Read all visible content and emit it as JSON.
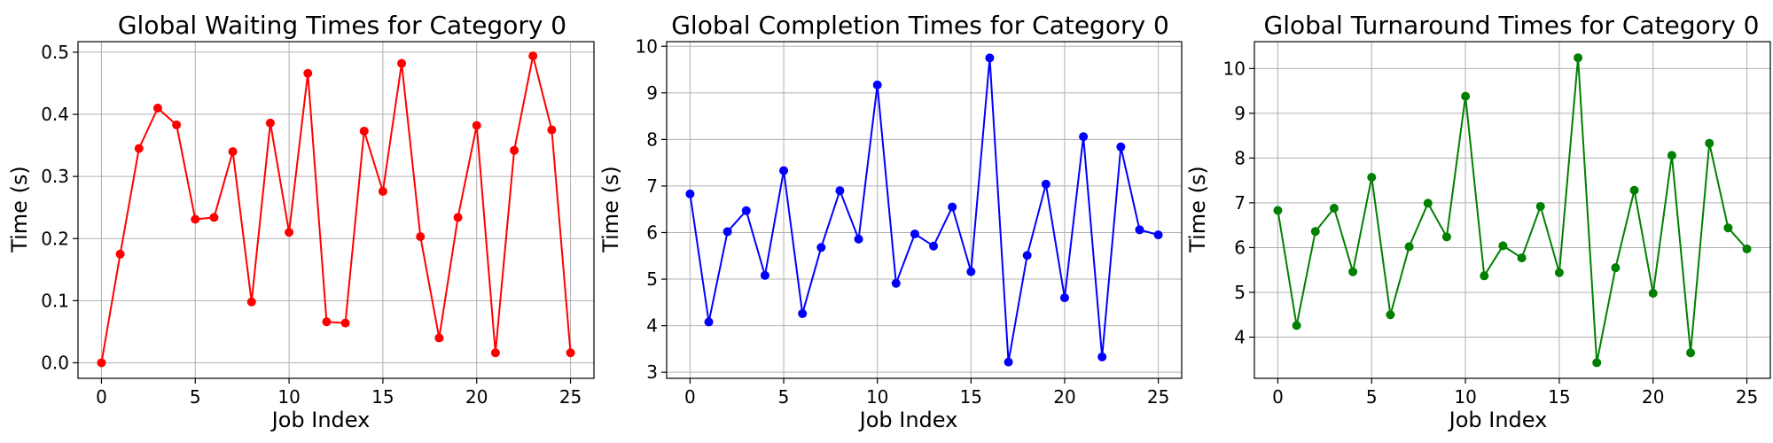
{
  "chart_data": [
    {
      "type": "line",
      "title": "Global Waiting Times for Category 0",
      "xlabel": "Job Index",
      "ylabel": "Time (s)",
      "color": "#ff0000",
      "grid": true,
      "xlim": [
        -1.25,
        26.25
      ],
      "ylim": [
        -0.025,
        0.517
      ],
      "xticks": [
        0,
        5,
        10,
        15,
        20,
        25
      ],
      "yticks": [
        0.0,
        0.1,
        0.2,
        0.3,
        0.4,
        0.5
      ],
      "ytick_labels": [
        "0.0",
        "0.1",
        "0.2",
        "0.3",
        "0.4",
        "0.5"
      ],
      "x": [
        0,
        1,
        2,
        3,
        4,
        5,
        6,
        7,
        8,
        9,
        10,
        11,
        12,
        13,
        14,
        15,
        16,
        17,
        18,
        19,
        20,
        21,
        22,
        23,
        24,
        25
      ],
      "y": [
        0.0,
        0.175,
        0.345,
        0.41,
        0.383,
        0.231,
        0.234,
        0.34,
        0.098,
        0.386,
        0.21,
        0.466,
        0.066,
        0.064,
        0.373,
        0.276,
        0.482,
        0.203,
        0.04,
        0.234,
        0.382,
        0.016,
        0.342,
        0.494,
        0.375,
        0.016
      ]
    },
    {
      "type": "line",
      "title": "Global Completion Times for Category 0",
      "xlabel": "Job Index",
      "ylabel": "Time (s)",
      "color": "#0000ff",
      "grid": true,
      "xlim": [
        -1.25,
        26.25
      ],
      "ylim": [
        2.87,
        10.1
      ],
      "xticks": [
        0,
        5,
        10,
        15,
        20,
        25
      ],
      "yticks": [
        3,
        4,
        5,
        6,
        7,
        8,
        9,
        10
      ],
      "ytick_labels": [
        "3",
        "4",
        "5",
        "6",
        "7",
        "8",
        "9",
        "10"
      ],
      "x": [
        0,
        1,
        2,
        3,
        4,
        5,
        6,
        7,
        8,
        9,
        10,
        11,
        12,
        13,
        14,
        15,
        16,
        17,
        18,
        19,
        20,
        21,
        22,
        23,
        24,
        25
      ],
      "y": [
        6.83,
        4.08,
        6.02,
        6.47,
        5.08,
        7.33,
        4.26,
        5.68,
        6.9,
        5.86,
        9.17,
        4.91,
        5.97,
        5.71,
        6.55,
        5.16,
        9.75,
        3.22,
        5.51,
        7.04,
        4.6,
        8.06,
        3.33,
        7.84,
        6.06,
        5.95
      ]
    },
    {
      "type": "line",
      "title": "Global Turnaround Times for Category 0",
      "xlabel": "Job Index",
      "ylabel": "Time (s)",
      "color": "#008000",
      "grid": true,
      "xlim": [
        -1.25,
        26.25
      ],
      "ylim": [
        3.08,
        10.6
      ],
      "xticks": [
        0,
        5,
        10,
        15,
        20,
        25
      ],
      "yticks": [
        4,
        5,
        6,
        7,
        8,
        9,
        10
      ],
      "ytick_labels": [
        "4",
        "5",
        "6",
        "7",
        "8",
        "9",
        "10"
      ],
      "x": [
        0,
        1,
        2,
        3,
        4,
        5,
        6,
        7,
        8,
        9,
        10,
        11,
        12,
        13,
        14,
        15,
        16,
        17,
        18,
        19,
        20,
        21,
        22,
        23,
        24,
        25
      ],
      "y": [
        6.83,
        4.26,
        6.36,
        6.88,
        5.46,
        7.57,
        4.5,
        6.02,
        6.99,
        6.24,
        9.38,
        5.37,
        6.04,
        5.77,
        6.92,
        5.44,
        10.24,
        3.43,
        5.55,
        7.28,
        4.98,
        8.06,
        3.65,
        8.33,
        6.44,
        5.97
      ]
    }
  ]
}
